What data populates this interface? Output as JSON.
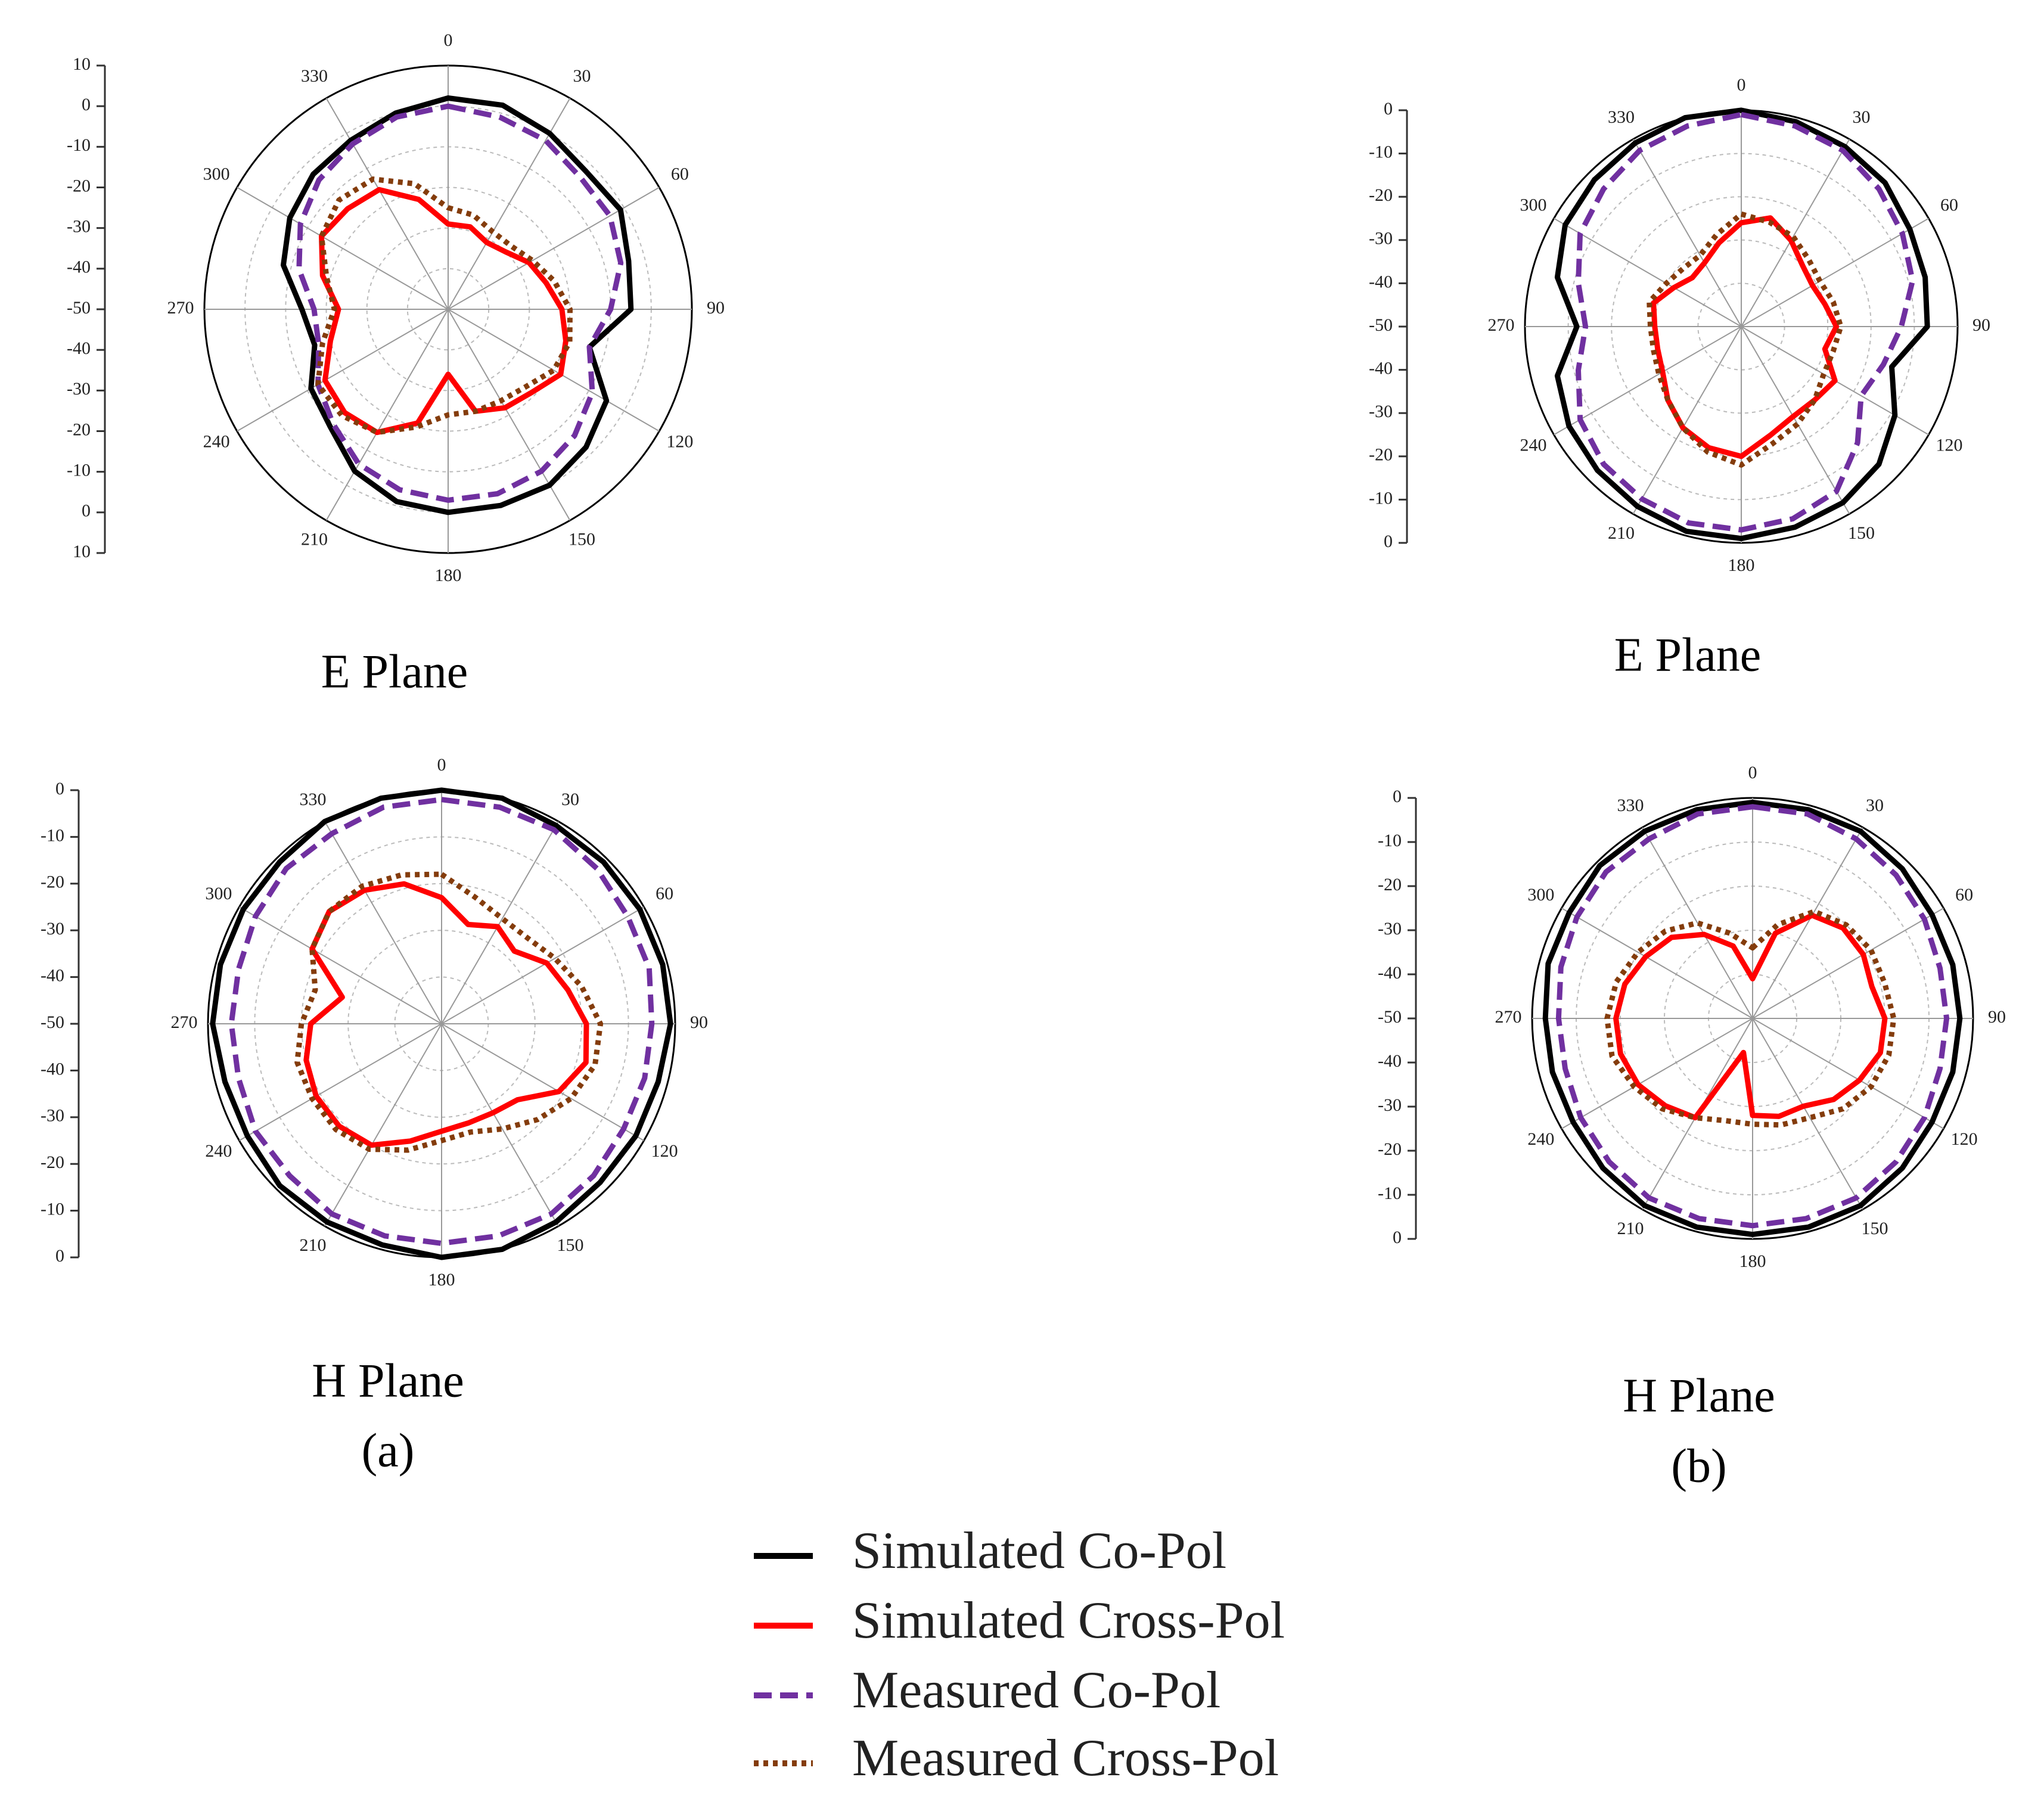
{
  "chart_data": [
    {
      "type": "polar",
      "title": "E Plane",
      "grid": true,
      "x": [
        0,
        15,
        30,
        45,
        60,
        75,
        90,
        105,
        120,
        135,
        150,
        165,
        180,
        195,
        210,
        225,
        240,
        255,
        270,
        285,
        300,
        315,
        330,
        345
      ],
      "xticks": [
        0,
        30,
        60,
        90,
        120,
        150,
        180,
        210,
        240,
        270,
        300,
        330
      ],
      "ylim": [
        -50,
        10
      ],
      "yticks": [
        -50,
        -40,
        -30,
        -20,
        -10,
        0,
        10
      ],
      "series": [
        {
          "name": "Simulated Co-Pol",
          "color": "#000000",
          "dash": "solid",
          "values": [
            2,
            2,
            0,
            -2,
            -1,
            -4,
            -5,
            -14,
            -5,
            -2,
            0,
            0,
            0,
            -1,
            -4,
            -9,
            -11,
            -16,
            -14,
            -8,
            -5,
            -3,
            -2,
            0
          ]
        },
        {
          "name": "Simulated Cross-Pol",
          "color": "#ff0000",
          "dash": "solid",
          "values": [
            -29,
            -29,
            -31,
            -30,
            -27,
            -25,
            -22,
            -20,
            -18,
            -21,
            -22,
            -24,
            -34,
            -21,
            -15,
            -14,
            -15,
            -20,
            -23,
            -18,
            -14,
            -15,
            -16,
            -22
          ]
        },
        {
          "name": "Measured Co-Pol",
          "color": "#7030a0",
          "dash": "dashed",
          "values": [
            0,
            -1,
            -2,
            -4,
            -4,
            -6,
            -10,
            -14,
            -9,
            -6,
            -4,
            -3,
            -3,
            -4,
            -6,
            -10,
            -13,
            -17,
            -17,
            -12,
            -8,
            -5,
            -3,
            -1
          ]
        },
        {
          "name": "Measured Cross-Pol",
          "color": "#843c0c",
          "dash": "dotted",
          "values": [
            -25,
            -26,
            -28,
            -28,
            -26,
            -23,
            -20,
            -19,
            -20,
            -23,
            -24,
            -24,
            -24,
            -20,
            -15,
            -13,
            -13,
            -18,
            -22,
            -19,
            -14,
            -12,
            -13,
            -18
          ]
        }
      ]
    },
    {
      "type": "polar",
      "title": "H Plane",
      "panel_label": "(a)",
      "grid": true,
      "x": [
        0,
        15,
        30,
        45,
        60,
        75,
        90,
        105,
        120,
        135,
        150,
        165,
        180,
        195,
        210,
        225,
        240,
        255,
        270,
        285,
        300,
        315,
        330,
        345
      ],
      "xticks": [
        0,
        30,
        60,
        90,
        120,
        150,
        180,
        210,
        240,
        270,
        300,
        330
      ],
      "ylim": [
        -50,
        0
      ],
      "yticks": [
        -50,
        -40,
        -30,
        -20,
        -10,
        0
      ],
      "series": [
        {
          "name": "Simulated Co-Pol",
          "color": "#000000",
          "dash": "solid",
          "values": [
            0,
            0,
            -1,
            -1,
            -1,
            -1,
            -1,
            -2,
            -2,
            -2,
            -1,
            0,
            0,
            -1,
            -1,
            -1,
            -2,
            -2,
            -1,
            -1,
            -1,
            -1,
            0,
            0
          ]
        },
        {
          "name": "Simulated Cross-Pol",
          "color": "#ff0000",
          "dash": "solid",
          "values": [
            -23,
            -28,
            -26,
            -28,
            -24,
            -22,
            -19,
            -18,
            -21,
            -27,
            -28,
            -28,
            -27,
            -24,
            -20,
            -19,
            -19,
            -20,
            -22,
            -28,
            -18,
            -16,
            -17,
            -19
          ]
        },
        {
          "name": "Measured Co-Pol",
          "color": "#7030a0",
          "dash": "dashed",
          "values": [
            -2,
            -2,
            -2,
            -3,
            -4,
            -4,
            -5,
            -5,
            -5,
            -4,
            -3,
            -3,
            -3,
            -3,
            -3,
            -4,
            -4,
            -5,
            -5,
            -5,
            -4,
            -3,
            -3,
            -2
          ]
        },
        {
          "name": "Measured Cross-Pol",
          "color": "#843c0c",
          "dash": "dotted",
          "values": [
            -18,
            -22,
            -24,
            -24,
            -22,
            -19,
            -16,
            -16,
            -18,
            -21,
            -24,
            -26,
            -25,
            -22,
            -19,
            -18,
            -18,
            -18,
            -20,
            -22,
            -18,
            -16,
            -16,
            -17
          ]
        }
      ]
    },
    {
      "type": "polar",
      "title": "E Plane",
      "grid": true,
      "x": [
        0,
        15,
        30,
        45,
        60,
        75,
        90,
        105,
        120,
        135,
        150,
        165,
        180,
        195,
        210,
        225,
        240,
        255,
        270,
        285,
        300,
        315,
        330,
        345
      ],
      "xticks": [
        0,
        30,
        60,
        90,
        120,
        150,
        180,
        210,
        240,
        270,
        300,
        330
      ],
      "ylim": [
        -50,
        0
      ],
      "yticks": [
        -50,
        -40,
        -30,
        -20,
        -10,
        0
      ],
      "series": [
        {
          "name": "Simulated Co-Pol",
          "color": "#000000",
          "dash": "solid",
          "values": [
            0,
            -1,
            -2,
            -3,
            -5,
            -6,
            -7,
            -14,
            -9,
            -5,
            -3,
            -2,
            -1,
            -1,
            -2,
            -3,
            -4,
            -6,
            -12,
            -6,
            -3,
            -2,
            -1,
            0
          ]
        },
        {
          "name": "Simulated Cross-Pol",
          "color": "#ff0000",
          "dash": "solid",
          "values": [
            -26,
            -24,
            -27,
            -30,
            -31,
            -30,
            -28,
            -30,
            -25,
            -26,
            -26,
            -24,
            -20,
            -21,
            -23,
            -26,
            -29,
            -30,
            -30,
            -29,
            -32,
            -34,
            -33,
            -30
          ]
        },
        {
          "name": "Measured Co-Pol",
          "color": "#7030a0",
          "dash": "dashed",
          "values": [
            -1,
            -2,
            -3,
            -5,
            -7,
            -9,
            -13,
            -16,
            -18,
            -12,
            -6,
            -4,
            -3,
            -3,
            -4,
            -5,
            -7,
            -11,
            -14,
            -11,
            -7,
            -5,
            -3,
            -2
          ]
        },
        {
          "name": "Measured Cross-Pol",
          "color": "#843c0c",
          "dash": "dotted",
          "values": [
            -24,
            -25,
            -26,
            -28,
            -29,
            -28,
            -27,
            -28,
            -28,
            -26,
            -24,
            -22,
            -18,
            -20,
            -23,
            -26,
            -28,
            -29,
            -29,
            -28,
            -30,
            -31,
            -31,
            -28
          ]
        }
      ]
    },
    {
      "type": "polar",
      "title": "H Plane",
      "panel_label": "(b)",
      "grid": true,
      "x": [
        0,
        15,
        30,
        45,
        60,
        75,
        90,
        105,
        120,
        135,
        150,
        165,
        180,
        195,
        210,
        225,
        240,
        255,
        270,
        285,
        300,
        315,
        330,
        345
      ],
      "xticks": [
        0,
        30,
        60,
        90,
        120,
        150,
        180,
        210,
        240,
        270,
        300,
        330
      ],
      "ylim": [
        -50,
        0
      ],
      "yticks": [
        -50,
        -40,
        -30,
        -20,
        -10,
        0
      ],
      "series": [
        {
          "name": "Simulated Co-Pol",
          "color": "#000000",
          "dash": "solid",
          "values": [
            -1,
            -1,
            -1,
            -2,
            -3,
            -3,
            -3,
            -3,
            -3,
            -2,
            -1,
            -1,
            -1,
            -1,
            -1,
            -2,
            -3,
            -3,
            -3,
            -2,
            -2,
            -1,
            -1,
            -1
          ]
        },
        {
          "name": "Simulated Cross-Pol",
          "color": "#ff0000",
          "dash": "solid",
          "values": [
            -41,
            -30,
            -23,
            -21,
            -21,
            -22,
            -20,
            -20,
            -22,
            -24,
            -27,
            -27,
            -28,
            -42,
            -24,
            -22,
            -20,
            -19,
            -19,
            -20,
            -22,
            -24,
            -28,
            -33
          ]
        },
        {
          "name": "Measured Co-Pol",
          "color": "#7030a0",
          "dash": "dashed",
          "values": [
            -2,
            -2,
            -3,
            -4,
            -5,
            -6,
            -6,
            -6,
            -5,
            -4,
            -3,
            -3,
            -3,
            -3,
            -3,
            -4,
            -5,
            -6,
            -6,
            -5,
            -4,
            -3,
            -3,
            -2
          ]
        },
        {
          "name": "Measured Cross-Pol",
          "color": "#843c0c",
          "dash": "dotted",
          "values": [
            -34,
            -28,
            -22,
            -20,
            -19,
            -19,
            -18,
            -18,
            -19,
            -21,
            -24,
            -25,
            -26,
            -26,
            -24,
            -21,
            -19,
            -17,
            -17,
            -18,
            -20,
            -22,
            -25,
            -30
          ]
        }
      ]
    }
  ]
}
